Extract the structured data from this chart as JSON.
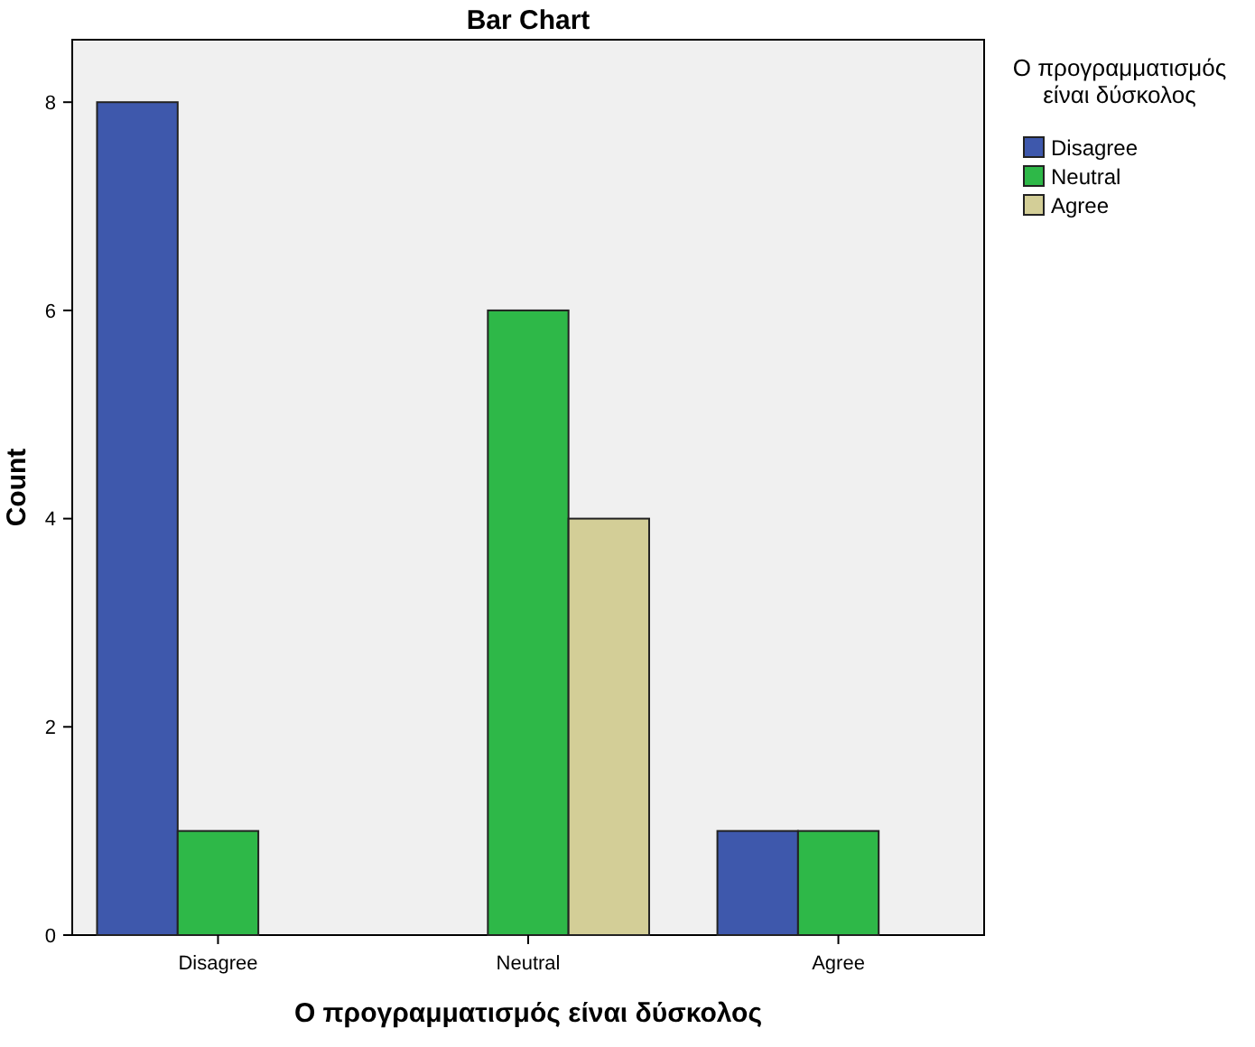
{
  "chart_data": {
    "type": "bar",
    "title": "Bar Chart",
    "xlabel": "Ο προγραμματισμός είναι δύσκολος",
    "ylabel": "Count",
    "legend_title": "Ο προγραμματισμός είναι δύσκολος",
    "categories": [
      "Disagree",
      "Neutral",
      "Agree"
    ],
    "series": [
      {
        "name": "Disagree",
        "color": "#3e58ac",
        "values": [
          8,
          null,
          1
        ]
      },
      {
        "name": "Neutral",
        "color": "#2eb848",
        "values": [
          1,
          6,
          1
        ]
      },
      {
        "name": "Agree",
        "color": "#d3ce97",
        "values": [
          null,
          4,
          null
        ]
      }
    ],
    "ylim": [
      0,
      8.6
    ],
    "yticks": [
      0,
      2,
      4,
      6,
      8
    ],
    "grid": false,
    "legend": "right"
  }
}
